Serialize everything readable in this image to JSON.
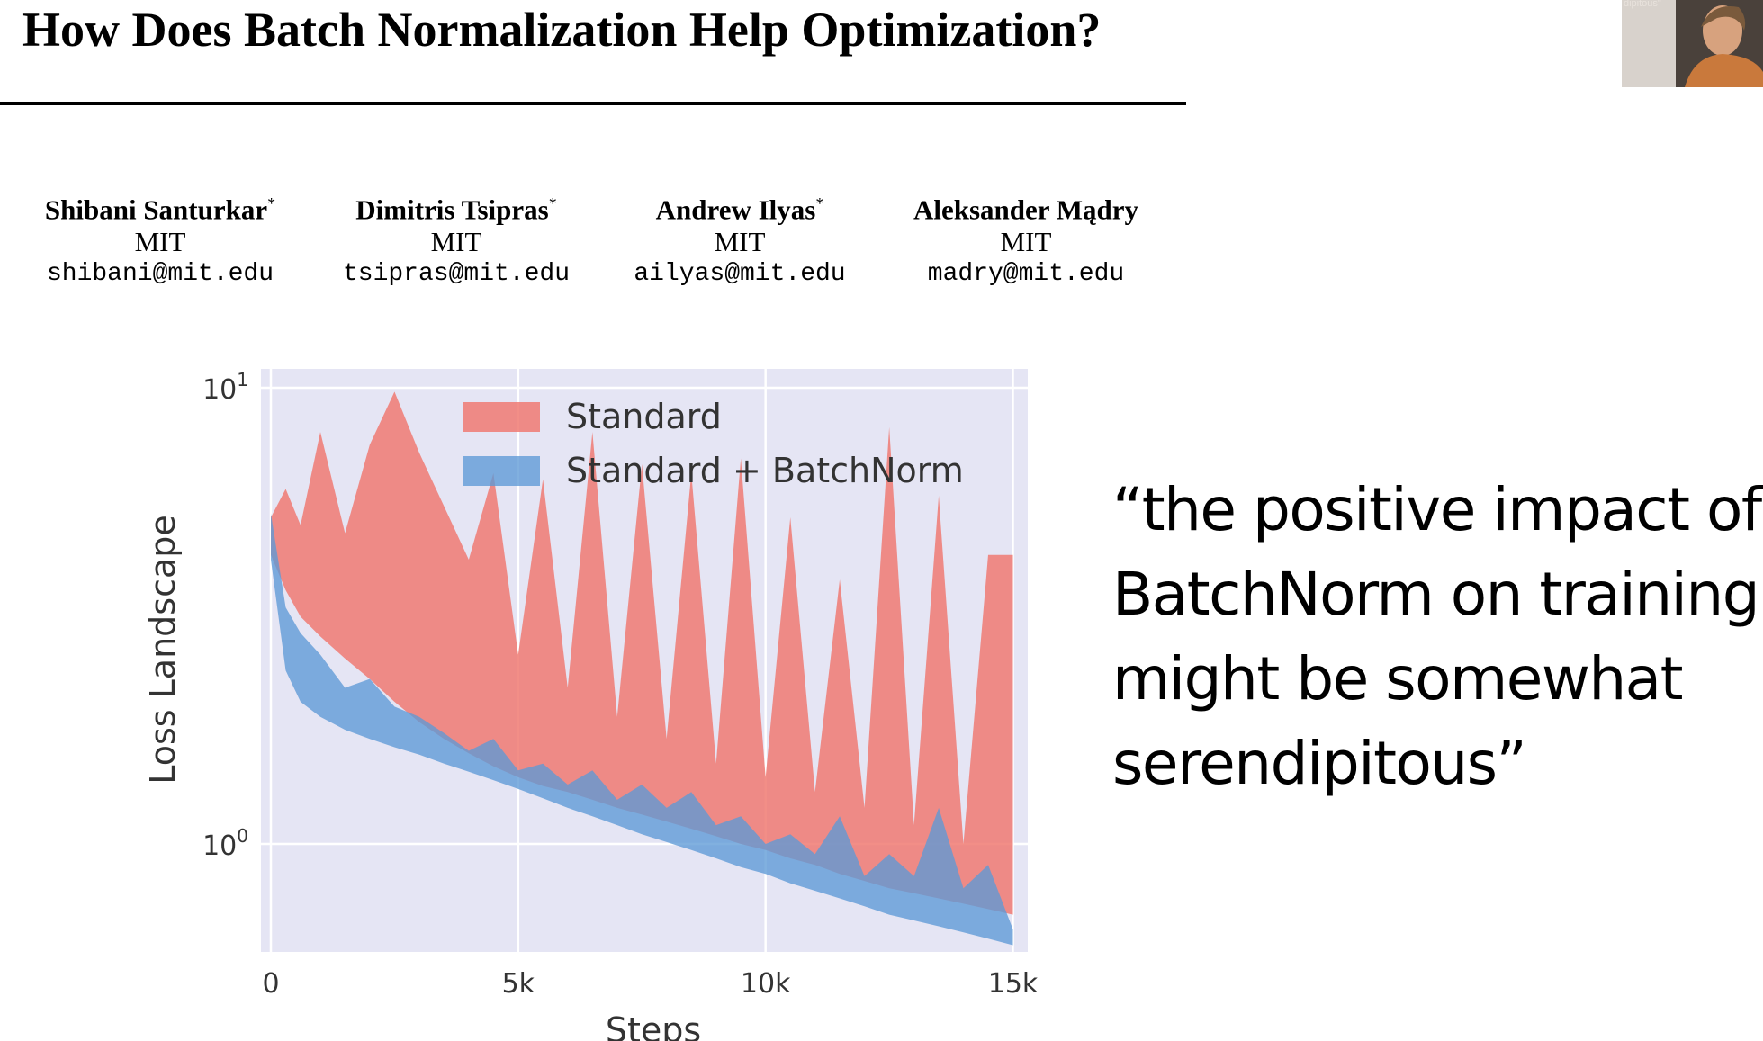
{
  "slide": {
    "title": "How Does Batch Normalization Help Optimization?",
    "webcam_caption": "dipitous\""
  },
  "authors": [
    {
      "name": "Shibani Santurkar",
      "marker": "*",
      "affiliation": "MIT",
      "email": "shibani@mit.edu"
    },
    {
      "name": "Dimitris Tsipras",
      "marker": "*",
      "affiliation": "MIT",
      "email": "tsipras@mit.edu"
    },
    {
      "name": "Andrew Ilyas",
      "marker": "*",
      "affiliation": "MIT",
      "email": "ailyas@mit.edu"
    },
    {
      "name": "Aleksander Mądry",
      "marker": "",
      "affiliation": "MIT",
      "email": "madry@mit.edu"
    }
  ],
  "quote": {
    "lines": [
      "“the positive impact of",
      "BatchNorm on training",
      "might be somewhat",
      "serendipitous”"
    ]
  },
  "chart_data": {
    "type": "area",
    "ylabel": "Loss Landscape",
    "xlabel": "Steps",
    "y_scale": "log",
    "ylim": [
      0.58,
      11
    ],
    "xlim": [
      -200,
      15300
    ],
    "xticks": [
      0,
      5000,
      10000,
      15000
    ],
    "xtick_labels": [
      "0",
      "5k",
      "10k",
      "15k"
    ],
    "yticks": [
      1,
      10
    ],
    "ytick_labels": [
      {
        "base": "10",
        "exp": "0"
      },
      {
        "base": "10",
        "exp": "1"
      }
    ],
    "legend_placement": "top-center",
    "grid": true,
    "colors": {
      "background": "#e5e5f4",
      "grid": "#ffffff",
      "standard": "#f07a72",
      "batchnorm": "#5d9ad6"
    },
    "series": [
      {
        "name": "Standard",
        "x": [
          0,
          300,
          600,
          1000,
          1500,
          2000,
          2500,
          3000,
          3500,
          4000,
          4500,
          5000,
          5500,
          6000,
          6500,
          7000,
          7500,
          8000,
          8500,
          9000,
          9500,
          10000,
          10500,
          11000,
          11500,
          12000,
          12500,
          13000,
          13500,
          14000,
          14500,
          15000
        ],
        "lower": [
          4.3,
          3.6,
          3.15,
          2.85,
          2.55,
          2.3,
          2.05,
          1.85,
          1.7,
          1.58,
          1.48,
          1.4,
          1.34,
          1.3,
          1.25,
          1.2,
          1.16,
          1.12,
          1.08,
          1.04,
          1.0,
          0.97,
          0.93,
          0.9,
          0.86,
          0.83,
          0.8,
          0.78,
          0.76,
          0.74,
          0.72,
          0.7
        ],
        "upper": [
          5.2,
          6.0,
          5.0,
          8.0,
          4.8,
          7.5,
          9.8,
          7.2,
          5.5,
          4.2,
          6.5,
          2.6,
          6.3,
          2.2,
          8.0,
          1.9,
          6.8,
          1.7,
          6.5,
          1.5,
          7.0,
          1.4,
          5.2,
          1.3,
          3.8,
          1.2,
          8.2,
          1.1,
          5.8,
          1.0,
          4.3,
          4.3
        ]
      },
      {
        "name": "Standard + BatchNorm",
        "x": [
          0,
          300,
          600,
          1000,
          1500,
          2000,
          2500,
          3000,
          3500,
          4000,
          4500,
          5000,
          5500,
          6000,
          6500,
          7000,
          7500,
          8000,
          8500,
          9000,
          9500,
          10000,
          10500,
          11000,
          11500,
          12000,
          12500,
          13000,
          13500,
          14000,
          14500,
          15000
        ],
        "lower": [
          4.2,
          2.4,
          2.05,
          1.9,
          1.78,
          1.7,
          1.63,
          1.57,
          1.5,
          1.44,
          1.38,
          1.32,
          1.26,
          1.2,
          1.15,
          1.1,
          1.05,
          1.01,
          0.97,
          0.93,
          0.89,
          0.86,
          0.82,
          0.79,
          0.76,
          0.73,
          0.7,
          0.68,
          0.66,
          0.64,
          0.62,
          0.6
        ],
        "upper": [
          5.3,
          3.3,
          2.9,
          2.6,
          2.2,
          2.3,
          2.0,
          1.9,
          1.75,
          1.6,
          1.7,
          1.45,
          1.5,
          1.35,
          1.45,
          1.25,
          1.35,
          1.2,
          1.3,
          1.1,
          1.15,
          1.0,
          1.05,
          0.95,
          1.15,
          0.85,
          0.95,
          0.85,
          1.2,
          0.8,
          0.9,
          0.65
        ]
      }
    ]
  }
}
